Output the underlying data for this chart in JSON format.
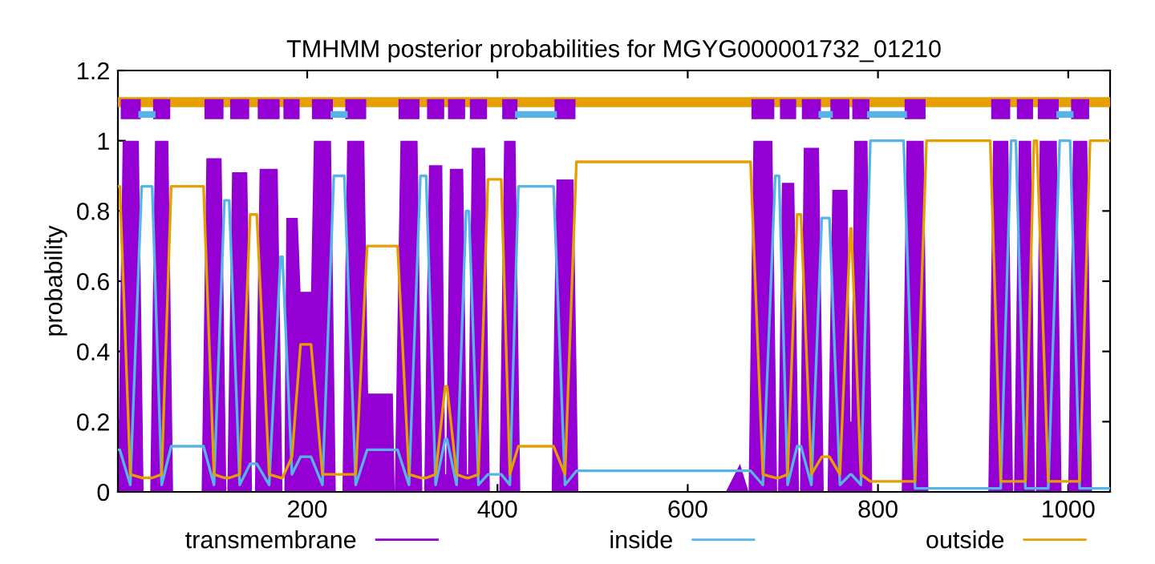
{
  "chart_data": {
    "type": "line",
    "title": "TMHMM posterior probabilities for MGYG000001732_01210",
    "ylabel": "probability",
    "xlim": [
      1,
      1044
    ],
    "ylim": [
      0,
      1.2
    ],
    "xticks": [
      200,
      400,
      600,
      800,
      1000
    ],
    "yticks": [
      0,
      0.2,
      0.4,
      0.6,
      0.8,
      1,
      1.2
    ],
    "grid": false,
    "legend": "bottom",
    "series": [
      {
        "name": "transmembrane",
        "type": "area",
        "color": "#9400d3",
        "x": [
          1,
          6,
          23,
          28,
          35,
          40,
          54,
          59,
          89,
          94,
          110,
          115,
          116,
          121,
          137,
          142,
          145,
          150,
          169,
          174,
          176,
          178,
          190,
          193,
          204,
          207,
          225,
          230,
          237,
          242,
          260,
          264,
          290,
          292,
          298,
          316,
          321,
          323,
          328,
          342,
          345,
          346,
          350,
          364,
          368,
          369,
          373,
          387,
          392,
          402,
          407,
          419,
          424,
          457,
          462,
          480,
          485,
          640,
          655,
          664,
          669,
          689,
          694,
          695,
          699,
          712,
          717,
          718,
          722,
          738,
          743,
          747,
          752,
          768,
          771,
          772,
          775,
          789,
          794,
          825,
          830,
          848,
          853,
          916,
          921,
          937,
          942,
          943,
          948,
          961,
          965,
          966,
          970,
          988,
          993,
          1000,
          1005,
          1020,
          1025,
          1044
        ],
        "values": [
          0,
          1.0,
          1.0,
          0,
          0,
          1.0,
          1.0,
          0,
          0,
          0.95,
          0.95,
          0,
          0,
          0.91,
          0.91,
          0,
          0,
          0.92,
          0.92,
          0,
          0,
          0.78,
          0.78,
          0.57,
          0.57,
          1.0,
          1.0,
          0,
          0,
          1.0,
          1.0,
          0.28,
          0.28,
          0,
          1.0,
          1.0,
          0,
          0,
          0.93,
          0.93,
          0.05,
          0.05,
          0.92,
          0.92,
          0.05,
          0.05,
          0.98,
          0.98,
          0,
          0,
          1.0,
          1.0,
          0,
          0,
          0.89,
          0.89,
          0,
          0,
          0.08,
          0,
          1.0,
          1.0,
          0,
          0,
          0.88,
          0.88,
          0,
          0,
          0.98,
          0.98,
          0,
          0,
          0.86,
          0.86,
          0.2,
          0.2,
          1.0,
          1.0,
          0,
          0,
          1.0,
          1.0,
          0,
          0,
          1.0,
          1.0,
          0,
          0,
          1.0,
          1.0,
          0,
          0,
          1.0,
          1.0,
          0,
          0,
          1.0,
          1.0,
          0,
          0
        ]
      },
      {
        "name": "inside",
        "color": "#56b4e9",
        "x": [
          1,
          3,
          14,
          26,
          37,
          47,
          57,
          91,
          102,
          113,
          118,
          129,
          140,
          147,
          160,
          172,
          174,
          184,
          193,
          204,
          216,
          228,
          239,
          251,
          263,
          295,
          307,
          319,
          325,
          335,
          345,
          347,
          357,
          367,
          370,
          380,
          390,
          404,
          413,
          422,
          459,
          471,
          483,
          666,
          679,
          692,
          696,
          705,
          715,
          719,
          730,
          741,
          749,
          760,
          771,
          772,
          782,
          792,
          827,
          839,
          851,
          918,
          929,
          940,
          945,
          955,
          964,
          967,
          979,
          991,
          1002,
          1012,
          1023,
          1044
        ],
        "values": [
          0.12,
          0.12,
          0.02,
          0.87,
          0.87,
          0.02,
          0.13,
          0.13,
          0.02,
          0.83,
          0.83,
          0.02,
          0.08,
          0.08,
          0.02,
          0.67,
          0.67,
          0.05,
          0.1,
          0.1,
          0.02,
          0.9,
          0.9,
          0.02,
          0.12,
          0.12,
          0.02,
          0.9,
          0.9,
          0.02,
          0.15,
          0.15,
          0.02,
          0.8,
          0.8,
          0.02,
          0.05,
          0.05,
          0.02,
          0.87,
          0.87,
          0.02,
          0.06,
          0.06,
          0.02,
          0.9,
          0.9,
          0.02,
          0.13,
          0.13,
          0.02,
          0.78,
          0.78,
          0.02,
          0.05,
          0.05,
          0.02,
          1.0,
          1.0,
          0.01,
          0.01,
          0.01,
          0.01,
          1.0,
          1.0,
          0.01,
          0.01,
          0.01,
          0.01,
          1.0,
          1.0,
          0.01,
          0.01,
          0.01
        ]
      },
      {
        "name": "outside",
        "color": "#e69f00",
        "x": [
          1,
          3,
          14,
          26,
          37,
          47,
          57,
          91,
          102,
          113,
          118,
          129,
          140,
          147,
          160,
          172,
          174,
          184,
          193,
          204,
          216,
          228,
          239,
          251,
          263,
          295,
          307,
          319,
          325,
          335,
          345,
          347,
          357,
          367,
          370,
          380,
          390,
          404,
          413,
          422,
          459,
          471,
          483,
          666,
          679,
          692,
          696,
          705,
          715,
          719,
          730,
          741,
          749,
          760,
          771,
          772,
          782,
          792,
          827,
          839,
          851,
          918,
          929,
          940,
          945,
          955,
          964,
          967,
          979,
          991,
          1002,
          1012,
          1023,
          1044
        ],
        "values": [
          0.87,
          0.87,
          0.05,
          0.04,
          0.04,
          0.05,
          0.87,
          0.87,
          0.05,
          0.04,
          0.04,
          0.05,
          0.79,
          0.79,
          0.05,
          0.04,
          0.04,
          0.1,
          0.42,
          0.42,
          0.05,
          0.05,
          0.05,
          0.05,
          0.7,
          0.7,
          0.05,
          0.04,
          0.04,
          0.05,
          0.3,
          0.3,
          0.05,
          0.04,
          0.04,
          0.05,
          0.89,
          0.89,
          0.05,
          0.13,
          0.13,
          0.05,
          0.94,
          0.94,
          0.05,
          0.04,
          0.04,
          0.05,
          0.79,
          0.79,
          0.05,
          0.1,
          0.1,
          0.05,
          0.75,
          0.75,
          0.05,
          0.03,
          0.03,
          0.03,
          1.0,
          1.0,
          0.03,
          0.03,
          0.03,
          0.03,
          1.0,
          1.0,
          0.03,
          0.03,
          0.03,
          0.03,
          1.0,
          1.0
        ]
      },
      {
        "color": "#e69f00",
        "x": [
          1,
          1044
        ],
        "values": [
          1.11,
          1.11
        ]
      },
      {
        "color": "#9400d3",
        "x": [
          4,
          25,
          30,
          38,
          56,
          70,
          92,
          112,
          115,
          119,
          139,
          143,
          148,
          171,
          173,
          175,
          192,
          198,
          205,
          227,
          233,
          240,
          262,
          280,
          296,
          318,
          322,
          326,
          344,
          346,
          348,
          366,
          368,
          371,
          389,
          397,
          405,
          421,
          440,
          460,
          482,
          570,
          667,
          691,
          694,
          697,
          714,
          717,
          720,
          740,
          745,
          750,
          770,
          772,
          773,
          791,
          810,
          828,
          850,
          880,
          919,
          939,
          943,
          946,
          963,
          966,
          968,
          990,
          996,
          1003,
          1022
        ],
        "values": [
          1.09,
          1.09,
          null,
          1.09,
          1.09,
          null,
          1.09,
          1.09,
          null,
          1.09,
          1.09,
          null,
          1.09,
          1.09,
          null,
          1.09,
          1.09,
          null,
          1.09,
          1.09,
          null,
          1.09,
          1.09,
          null,
          1.09,
          1.09,
          null,
          1.09,
          1.09,
          null,
          1.09,
          1.09,
          null,
          1.09,
          1.09,
          null,
          1.09,
          1.09,
          null,
          1.09,
          1.09,
          null,
          1.09,
          1.09,
          null,
          1.09,
          1.09,
          null,
          1.09,
          1.09,
          null,
          1.09,
          1.09,
          null,
          1.09,
          1.09,
          null,
          1.09,
          1.09,
          null,
          1.09,
          1.09,
          null,
          1.09,
          1.09,
          null,
          1.09,
          1.09,
          null,
          1.09,
          1.09
        ]
      },
      {
        "color": "#56b4e9",
        "x": [
          26,
          37,
          80,
          228,
          239,
          280,
          422,
          459,
          600,
          741,
          749,
          770,
          792,
          827,
          900,
          991,
          1002
        ],
        "values": [
          1.075,
          1.075,
          null,
          1.075,
          1.075,
          null,
          1.075,
          1.075,
          null,
          1.075,
          1.075,
          null,
          1.075,
          1.075,
          null,
          1.075,
          1.075
        ]
      }
    ]
  }
}
